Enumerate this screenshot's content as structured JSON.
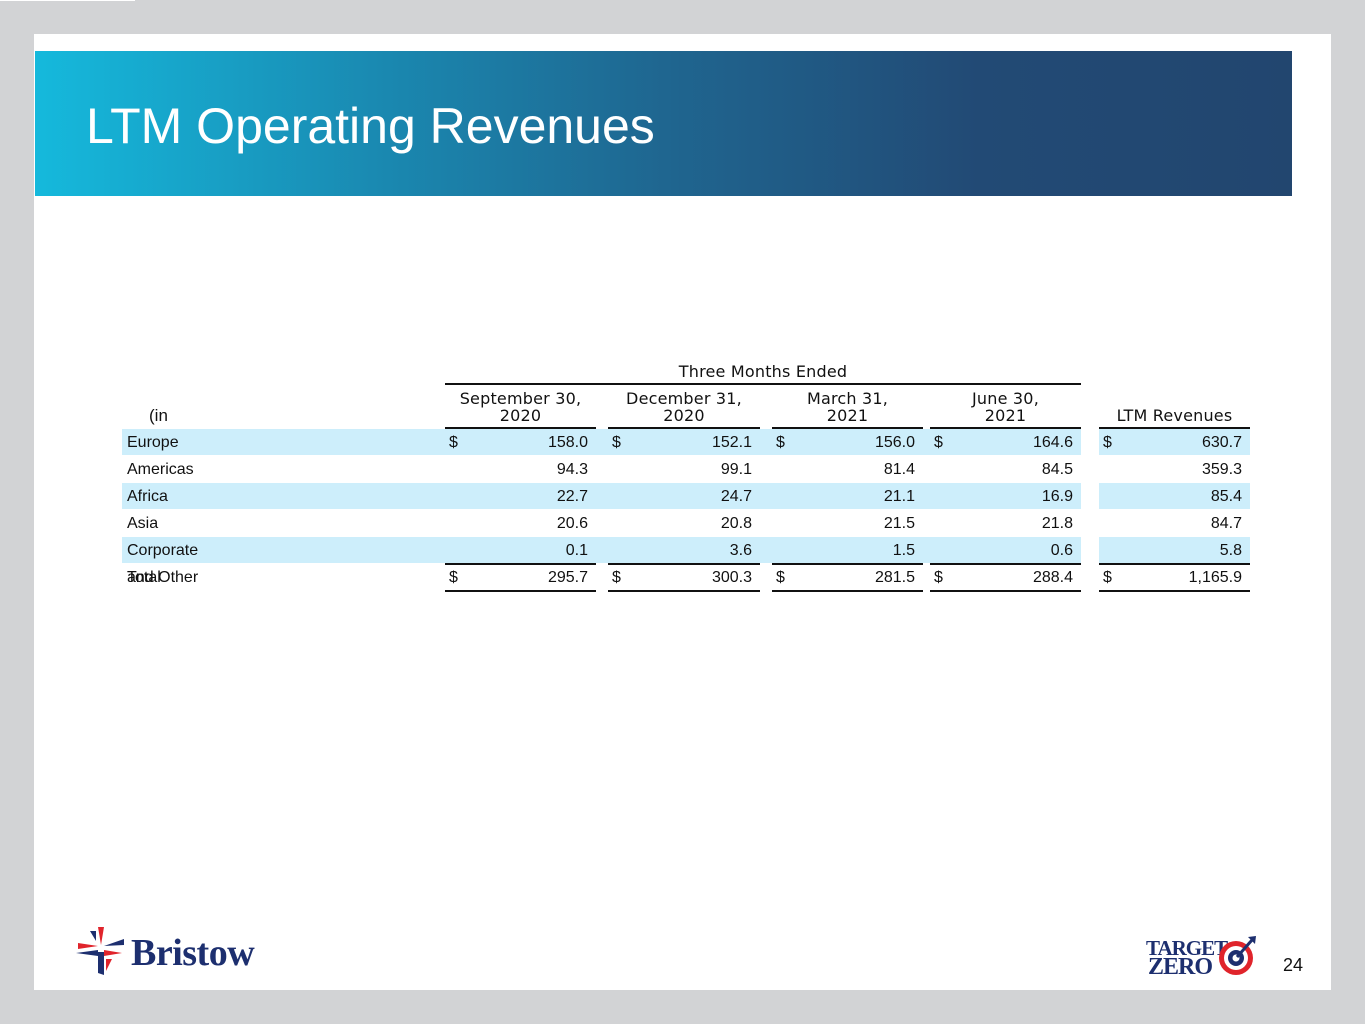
{
  "slide": {
    "title": "LTM Operating Revenues",
    "page_number": "24"
  },
  "table": {
    "group_header": "Three Months Ended",
    "units_label": "(in millions)",
    "columns": [
      {
        "line1": "September 30,",
        "line2": "2020"
      },
      {
        "line1": "December 31,",
        "line2": "2020"
      },
      {
        "line1": "March 31,",
        "line2": "2021"
      },
      {
        "line1": "June 30,",
        "line2": "2021"
      },
      {
        "line1": "LTM Revenues",
        "line2": ""
      }
    ],
    "currency_symbol": "$",
    "rows": [
      {
        "label": "Europe",
        "values": [
          "158.0",
          "152.1",
          "156.0",
          "164.6",
          "630.7"
        ],
        "show_currency": true,
        "shaded": true
      },
      {
        "label": "Americas",
        "values": [
          "94.3",
          "99.1",
          "81.4",
          "84.5",
          "359.3"
        ],
        "show_currency": false,
        "shaded": false
      },
      {
        "label": "Africa",
        "values": [
          "22.7",
          "24.7",
          "21.1",
          "16.9",
          "85.4"
        ],
        "show_currency": false,
        "shaded": true
      },
      {
        "label": "Asia Pacific",
        "values": [
          "20.6",
          "20.8",
          "21.5",
          "21.8",
          "84.7"
        ],
        "show_currency": false,
        "shaded": false
      },
      {
        "label": "Corporate and Other",
        "values": [
          "0.1",
          "3.6",
          "1.5",
          "0.6",
          "5.8"
        ],
        "show_currency": false,
        "shaded": true
      },
      {
        "label": "Total",
        "values": [
          "295.7",
          "300.3",
          "281.5",
          "288.4",
          "1,165.9"
        ],
        "show_currency": true,
        "shaded": false
      }
    ]
  },
  "logos": {
    "bristow": {
      "text": "Bristow",
      "icon": "bristow-logo-icon",
      "colors": {
        "red": "#e0242b",
        "blue": "#1d2f6f"
      }
    },
    "target_zero": {
      "line1": "TARGET",
      "line2": "ZERO",
      "icon": "target-icon",
      "colors": {
        "red": "#e0242b",
        "navy": "#1d2f6f"
      }
    }
  },
  "colors": {
    "banner_start": "#15b9dc",
    "banner_end": "#22466f",
    "row_shade": "#cdeefb"
  }
}
